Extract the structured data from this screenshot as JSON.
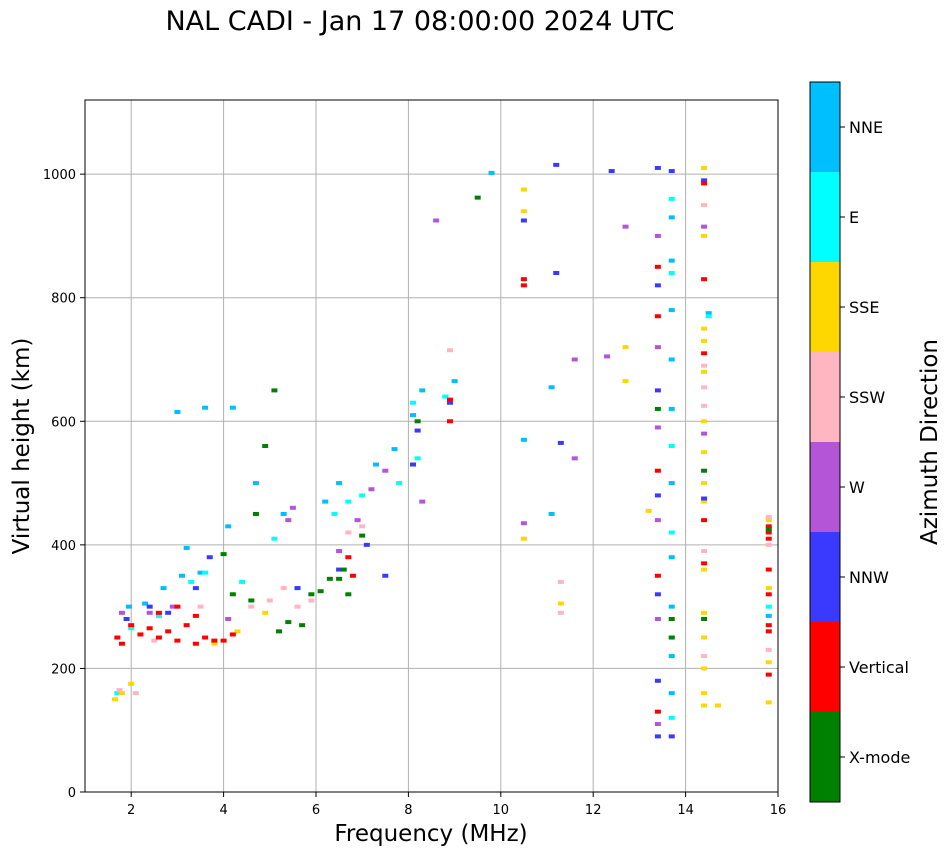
{
  "chart_data": {
    "type": "scatter",
    "title": "NAL CADI - Jan 17 08:00:00 2024 UTC",
    "xlabel": "Frequency (MHz)",
    "ylabel": "Virtual height (km)",
    "xlim": [
      1,
      16
    ],
    "ylim": [
      0,
      1120
    ],
    "xticks": [
      2,
      4,
      6,
      8,
      10,
      12,
      14,
      16
    ],
    "yticks": [
      0,
      200,
      400,
      600,
      800,
      1000
    ],
    "grid": true,
    "colorbar": {
      "label": "Azimuth Direction",
      "categories": [
        "X-mode",
        "Vertical",
        "NNW",
        "W",
        "SSW",
        "SSE",
        "E",
        "NNE"
      ],
      "colors": [
        "#008000",
        "#ff0000",
        "#3a3aff",
        "#b455d8",
        "#ffb6c1",
        "#ffd700",
        "#00ffff",
        "#00bfff"
      ]
    },
    "series": [
      {
        "name": "NNE",
        "points": [
          [
            1.95,
            300
          ],
          [
            2.3,
            305
          ],
          [
            2.7,
            330
          ],
          [
            3.1,
            350
          ],
          [
            3.2,
            395
          ],
          [
            3.5,
            355
          ],
          [
            3.0,
            615
          ],
          [
            3.6,
            622
          ],
          [
            4.2,
            622
          ],
          [
            4.1,
            430
          ],
          [
            4.7,
            500
          ],
          [
            5.3,
            450
          ],
          [
            6.2,
            470
          ],
          [
            6.5,
            500
          ],
          [
            7.3,
            530
          ],
          [
            7.7,
            555
          ],
          [
            8.1,
            610
          ],
          [
            8.3,
            650
          ],
          [
            9.0,
            665
          ],
          [
            9.8,
            1002
          ],
          [
            10.5,
            570
          ],
          [
            11.1,
            450
          ],
          [
            11.1,
            655
          ],
          [
            13.7,
            160
          ],
          [
            13.7,
            220
          ],
          [
            13.7,
            300
          ],
          [
            13.7,
            380
          ],
          [
            13.7,
            500
          ],
          [
            13.7,
            620
          ],
          [
            13.7,
            700
          ],
          [
            13.7,
            780
          ],
          [
            13.7,
            860
          ],
          [
            13.7,
            930
          ],
          [
            14.5,
            775
          ],
          [
            15.8,
            285
          ]
        ]
      },
      {
        "name": "E",
        "points": [
          [
            1.7,
            160
          ],
          [
            2.0,
            265
          ],
          [
            2.6,
            285
          ],
          [
            3.3,
            340
          ],
          [
            3.6,
            355
          ],
          [
            4.4,
            340
          ],
          [
            5.1,
            410
          ],
          [
            5.6,
            330
          ],
          [
            6.4,
            450
          ],
          [
            6.7,
            470
          ],
          [
            7.0,
            480
          ],
          [
            7.8,
            500
          ],
          [
            8.2,
            540
          ],
          [
            8.1,
            630
          ],
          [
            8.8,
            640
          ],
          [
            13.7,
            120
          ],
          [
            13.7,
            250
          ],
          [
            13.7,
            420
          ],
          [
            13.7,
            560
          ],
          [
            13.7,
            840
          ],
          [
            13.7,
            960
          ],
          [
            14.5,
            770
          ],
          [
            15.8,
            300
          ]
        ]
      },
      {
        "name": "SSE",
        "points": [
          [
            1.65,
            150
          ],
          [
            1.8,
            160
          ],
          [
            2.0,
            175
          ],
          [
            3.8,
            240
          ],
          [
            4.3,
            260
          ],
          [
            4.9,
            290
          ],
          [
            10.5,
            410
          ],
          [
            10.5,
            975
          ],
          [
            10.5,
            940
          ],
          [
            11.3,
            305
          ],
          [
            12.7,
            665
          ],
          [
            12.7,
            720
          ],
          [
            13.2,
            455
          ],
          [
            14.4,
            140
          ],
          [
            14.4,
            160
          ],
          [
            14.4,
            200
          ],
          [
            14.4,
            250
          ],
          [
            14.4,
            290
          ],
          [
            14.4,
            360
          ],
          [
            14.4,
            470
          ],
          [
            14.4,
            500
          ],
          [
            14.4,
            550
          ],
          [
            14.4,
            600
          ],
          [
            14.4,
            680
          ],
          [
            14.4,
            730
          ],
          [
            14.4,
            750
          ],
          [
            14.4,
            900
          ],
          [
            14.4,
            950
          ],
          [
            14.4,
            1010
          ],
          [
            14.7,
            140
          ],
          [
            15.8,
            145
          ],
          [
            15.8,
            210
          ],
          [
            15.8,
            330
          ],
          [
            15.8,
            440
          ]
        ]
      },
      {
        "name": "SSW",
        "points": [
          [
            1.75,
            165
          ],
          [
            2.1,
            160
          ],
          [
            2.5,
            245
          ],
          [
            3.5,
            300
          ],
          [
            4.6,
            300
          ],
          [
            5.0,
            310
          ],
          [
            5.3,
            330
          ],
          [
            5.6,
            300
          ],
          [
            5.9,
            310
          ],
          [
            6.7,
            420
          ],
          [
            7.0,
            430
          ],
          [
            8.9,
            715
          ],
          [
            11.3,
            340
          ],
          [
            11.3,
            290
          ],
          [
            14.4,
            220
          ],
          [
            14.4,
            390
          ],
          [
            14.4,
            625
          ],
          [
            14.4,
            655
          ],
          [
            14.4,
            690
          ],
          [
            14.4,
            950
          ],
          [
            15.8,
            230
          ],
          [
            15.8,
            400
          ],
          [
            15.8,
            445
          ]
        ]
      },
      {
        "name": "W",
        "points": [
          [
            1.8,
            290
          ],
          [
            2.4,
            290
          ],
          [
            2.9,
            300
          ],
          [
            4.1,
            280
          ],
          [
            5.4,
            440
          ],
          [
            5.5,
            460
          ],
          [
            6.5,
            390
          ],
          [
            6.9,
            440
          ],
          [
            7.2,
            490
          ],
          [
            7.5,
            520
          ],
          [
            8.3,
            470
          ],
          [
            8.6,
            925
          ],
          [
            10.5,
            435
          ],
          [
            11.6,
            540
          ],
          [
            11.6,
            700
          ],
          [
            12.3,
            705
          ],
          [
            12.7,
            915
          ],
          [
            13.4,
            110
          ],
          [
            13.4,
            280
          ],
          [
            13.4,
            440
          ],
          [
            13.4,
            590
          ],
          [
            13.4,
            720
          ],
          [
            13.4,
            900
          ],
          [
            14.4,
            580
          ],
          [
            14.4,
            915
          ]
        ]
      },
      {
        "name": "NNW",
        "points": [
          [
            1.9,
            280
          ],
          [
            2.4,
            300
          ],
          [
            2.8,
            290
          ],
          [
            3.4,
            330
          ],
          [
            3.7,
            380
          ],
          [
            5.6,
            330
          ],
          [
            6.5,
            360
          ],
          [
            7.1,
            400
          ],
          [
            7.5,
            350
          ],
          [
            8.1,
            530
          ],
          [
            8.2,
            585
          ],
          [
            8.9,
            630
          ],
          [
            10.5,
            925
          ],
          [
            11.2,
            1015
          ],
          [
            11.2,
            840
          ],
          [
            11.3,
            565
          ],
          [
            12.4,
            1005
          ],
          [
            13.4,
            90
          ],
          [
            13.4,
            180
          ],
          [
            13.4,
            320
          ],
          [
            13.4,
            480
          ],
          [
            13.4,
            650
          ],
          [
            13.4,
            820
          ],
          [
            13.4,
            1010
          ],
          [
            13.7,
            90
          ],
          [
            13.7,
            1005
          ],
          [
            14.4,
            475
          ],
          [
            14.4,
            990
          ]
        ]
      },
      {
        "name": "Vertical",
        "points": [
          [
            1.7,
            250
          ],
          [
            1.8,
            240
          ],
          [
            2.0,
            270
          ],
          [
            2.2,
            255
          ],
          [
            2.4,
            265
          ],
          [
            2.6,
            250
          ],
          [
            2.8,
            260
          ],
          [
            3.0,
            245
          ],
          [
            3.2,
            270
          ],
          [
            3.4,
            240
          ],
          [
            3.6,
            250
          ],
          [
            3.8,
            245
          ],
          [
            4.0,
            245
          ],
          [
            2.6,
            290
          ],
          [
            3.0,
            300
          ],
          [
            3.4,
            285
          ],
          [
            4.2,
            255
          ],
          [
            6.7,
            380
          ],
          [
            6.8,
            350
          ],
          [
            8.9,
            600
          ],
          [
            8.9,
            635
          ],
          [
            10.5,
            820
          ],
          [
            10.5,
            830
          ],
          [
            13.4,
            130
          ],
          [
            13.4,
            350
          ],
          [
            13.4,
            520
          ],
          [
            13.4,
            770
          ],
          [
            13.4,
            850
          ],
          [
            14.4,
            370
          ],
          [
            14.4,
            440
          ],
          [
            14.4,
            710
          ],
          [
            14.4,
            830
          ],
          [
            14.4,
            985
          ],
          [
            15.8,
            190
          ],
          [
            15.8,
            260
          ],
          [
            15.8,
            270
          ],
          [
            15.8,
            320
          ],
          [
            15.8,
            360
          ],
          [
            15.8,
            410
          ],
          [
            15.8,
            420
          ],
          [
            15.8,
            430
          ]
        ]
      },
      {
        "name": "X-mode",
        "points": [
          [
            4.0,
            385
          ],
          [
            4.2,
            320
          ],
          [
            4.6,
            310
          ],
          [
            4.7,
            450
          ],
          [
            4.9,
            560
          ],
          [
            5.1,
            650
          ],
          [
            5.2,
            260
          ],
          [
            5.4,
            275
          ],
          [
            5.7,
            270
          ],
          [
            5.9,
            320
          ],
          [
            6.1,
            325
          ],
          [
            6.3,
            345
          ],
          [
            6.5,
            345
          ],
          [
            6.6,
            360
          ],
          [
            6.7,
            320
          ],
          [
            7.0,
            415
          ],
          [
            8.2,
            600
          ],
          [
            9.5,
            962
          ],
          [
            13.4,
            620
          ],
          [
            13.7,
            280
          ],
          [
            13.7,
            250
          ],
          [
            14.4,
            280
          ],
          [
            14.4,
            520
          ],
          [
            15.8,
            425
          ]
        ]
      }
    ]
  }
}
